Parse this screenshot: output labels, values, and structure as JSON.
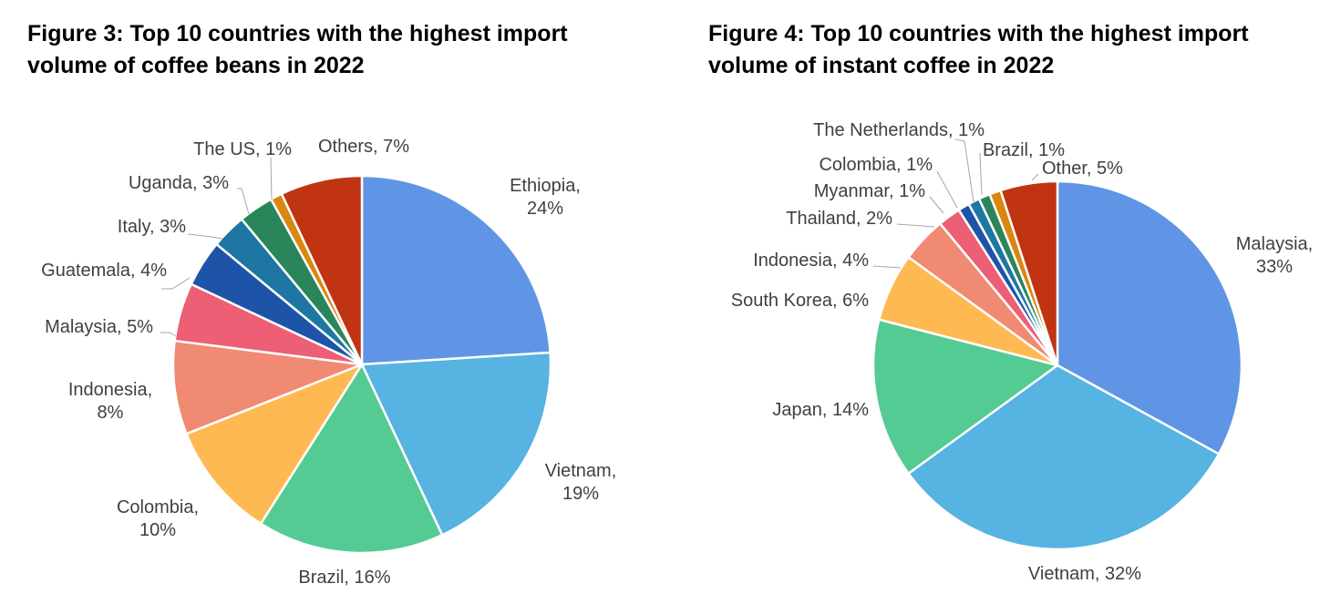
{
  "chart_data": [
    {
      "type": "pie",
      "title_lines": [
        "Figure 3: Top 10 countries with the highest import",
        "volume of coffee beans in 2022"
      ],
      "slices": [
        {
          "label": "Ethiopia,",
          "pct": "24%",
          "value": 24,
          "color": "#5f95e4"
        },
        {
          "label": "Vietnam,",
          "pct": "19%",
          "value": 19,
          "color": "#56b3e2"
        },
        {
          "label": "Brazil, 16%",
          "pct": "",
          "value": 16,
          "color": "#55cb94"
        },
        {
          "label": "Colombia,",
          "pct": "10%",
          "value": 10,
          "color": "#ffb952"
        },
        {
          "label": "Indonesia,",
          "pct": "8%",
          "value": 8,
          "color": "#f08a72"
        },
        {
          "label": "Malaysia, 5%",
          "pct": "",
          "value": 5,
          "color": "#ec5f75"
        },
        {
          "label": "Guatemala, 4%",
          "pct": "",
          "value": 4,
          "color": "#1e54a8"
        },
        {
          "label": "Italy, 3%",
          "pct": "",
          "value": 3,
          "color": "#1d77a2"
        },
        {
          "label": "Uganda, 3%",
          "pct": "",
          "value": 3,
          "color": "#2a855a"
        },
        {
          "label": "The US, 1%",
          "pct": "",
          "value": 1,
          "color": "#d98710"
        },
        {
          "label": "Others, 7%",
          "pct": "",
          "value": 7,
          "color": "#c03412"
        }
      ]
    },
    {
      "type": "pie",
      "title_lines": [
        "Figure 4: Top 10 countries with the highest import",
        "volume of instant coffee in 2022"
      ],
      "slices": [
        {
          "label": "Malaysia,",
          "pct": "33%",
          "value": 33,
          "color": "#5f95e4"
        },
        {
          "label": "Vietnam, 32%",
          "pct": "",
          "value": 32,
          "color": "#56b3e2"
        },
        {
          "label": "Japan, 14%",
          "pct": "",
          "value": 14,
          "color": "#55cb94"
        },
        {
          "label": "South Korea, 6%",
          "pct": "",
          "value": 6,
          "color": "#ffb952"
        },
        {
          "label": "Indonesia, 4%",
          "pct": "",
          "value": 4,
          "color": "#f08a72"
        },
        {
          "label": "Thailand, 2%",
          "pct": "",
          "value": 2,
          "color": "#ec5f75"
        },
        {
          "label": "Myanmar, 1%",
          "pct": "",
          "value": 1,
          "color": "#1e54a8"
        },
        {
          "label": "Colombia, 1%",
          "pct": "",
          "value": 1,
          "color": "#1d77a2"
        },
        {
          "label": "The Netherlands, 1%",
          "pct": "",
          "value": 1,
          "color": "#2a855a"
        },
        {
          "label": "Brazil, 1%",
          "pct": "",
          "value": 1,
          "color": "#d98710"
        },
        {
          "label": "Other, 5%",
          "pct": "",
          "value": 5,
          "color": "#c03412"
        }
      ]
    }
  ]
}
